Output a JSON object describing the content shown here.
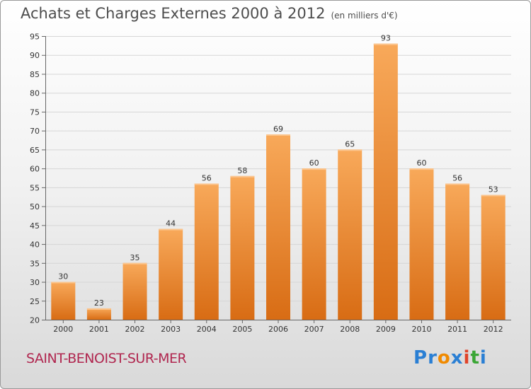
{
  "title": "Achats et Charges Externes 2000 à 2012",
  "subtitle": "(en milliers d'€)",
  "commune": "SAINT-BENOIST-SUR-MER",
  "logo": {
    "letters": [
      "P",
      "r",
      "o",
      "x",
      "i",
      "t",
      "i"
    ],
    "colors": [
      "#2a7fd4",
      "#2a7fd4",
      "#f08a00",
      "#2a7fd4",
      "#e0442a",
      "#3aa635",
      "#2a7fd4"
    ]
  },
  "colors": {
    "bar_light": "#f8a95a",
    "bar_dark": "#d86c14",
    "grid": "#d6d6d6",
    "axis": "#666666"
  },
  "chart_data": {
    "type": "bar",
    "title": "Achats et Charges Externes 2000 à 2012",
    "subtitle": "(en milliers d'€)",
    "categories": [
      "2000",
      "2001",
      "2002",
      "2003",
      "2004",
      "2005",
      "2006",
      "2007",
      "2008",
      "2009",
      "2010",
      "2011",
      "2012"
    ],
    "values": [
      30,
      23,
      35,
      44,
      56,
      58,
      69,
      60,
      65,
      93,
      60,
      56,
      53
    ],
    "ylim": [
      20,
      95
    ],
    "yticks": [
      20,
      25,
      30,
      35,
      40,
      45,
      50,
      55,
      60,
      65,
      70,
      75,
      80,
      85,
      90,
      95
    ],
    "grid": true,
    "data_labels": true
  }
}
